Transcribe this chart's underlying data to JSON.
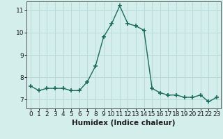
{
  "x": [
    0,
    1,
    2,
    3,
    4,
    5,
    6,
    7,
    8,
    9,
    10,
    11,
    12,
    13,
    14,
    15,
    16,
    17,
    18,
    19,
    20,
    21,
    22,
    23
  ],
  "y": [
    7.6,
    7.4,
    7.5,
    7.5,
    7.5,
    7.4,
    7.4,
    7.8,
    8.5,
    9.8,
    10.4,
    11.2,
    10.4,
    10.3,
    10.1,
    7.5,
    7.3,
    7.2,
    7.2,
    7.1,
    7.1,
    7.2,
    6.9,
    7.1
  ],
  "line_color": "#1a6b5a",
  "marker": "+",
  "marker_size": 4,
  "marker_lw": 1.2,
  "line_width": 1.0,
  "xlabel": "Humidex (Indice chaleur)",
  "bg_color": "#d4eeec",
  "grid_color": "#b8dbd9",
  "ylim": [
    6.6,
    11.4
  ],
  "xlim": [
    -0.5,
    23.5
  ],
  "yticks": [
    7,
    8,
    9,
    10,
    11
  ],
  "xticks": [
    0,
    1,
    2,
    3,
    4,
    5,
    6,
    7,
    8,
    9,
    10,
    11,
    12,
    13,
    14,
    15,
    16,
    17,
    18,
    19,
    20,
    21,
    22,
    23
  ],
  "tick_fontsize": 6.5,
  "label_fontsize": 7.5,
  "spine_color": "#555555"
}
